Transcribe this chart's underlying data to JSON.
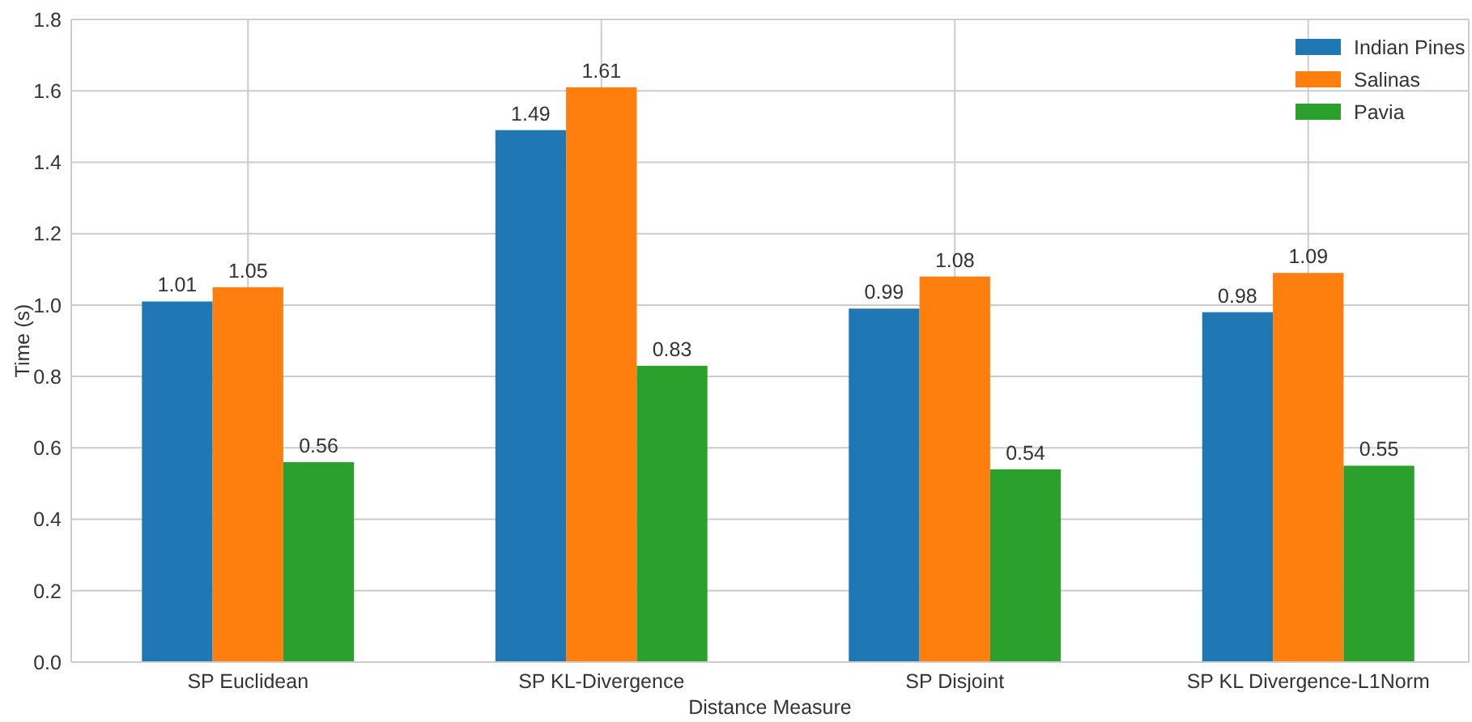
{
  "chart_data": {
    "type": "bar",
    "xlabel": "Distance Measure",
    "ylabel": "Time (s)",
    "categories": [
      "SP Euclidean",
      "SP KL-Divergence",
      "SP Disjoint",
      "SP KL Divergence-L1Norm"
    ],
    "series": [
      {
        "name": "Indian Pines",
        "color": "#1f77b4",
        "values": [
          1.01,
          1.49,
          0.99,
          0.98
        ]
      },
      {
        "name": "Salinas",
        "color": "#ff7f0e",
        "values": [
          1.05,
          1.61,
          1.08,
          1.09
        ]
      },
      {
        "name": "Pavia",
        "color": "#2ca02c",
        "values": [
          0.56,
          0.83,
          0.54,
          0.55
        ]
      }
    ],
    "ylim": [
      0,
      1.8
    ],
    "yticks": [
      {
        "value": 0,
        "label": "0.0"
      },
      {
        "value": 0.2,
        "label": "0.2"
      },
      {
        "value": 0.4,
        "label": "0.4"
      },
      {
        "value": 0.6,
        "label": "0.6"
      },
      {
        "value": 0.8,
        "label": "0.8"
      },
      {
        "value": 1,
        "label": "1.0"
      },
      {
        "value": 1.2,
        "label": "1.2"
      },
      {
        "value": 1.4,
        "label": "1.4"
      },
      {
        "value": 1.6,
        "label": "1.6"
      },
      {
        "value": 1.8,
        "label": "1.8"
      }
    ],
    "grid": true,
    "legend": "top right",
    "data_labels": true
  }
}
